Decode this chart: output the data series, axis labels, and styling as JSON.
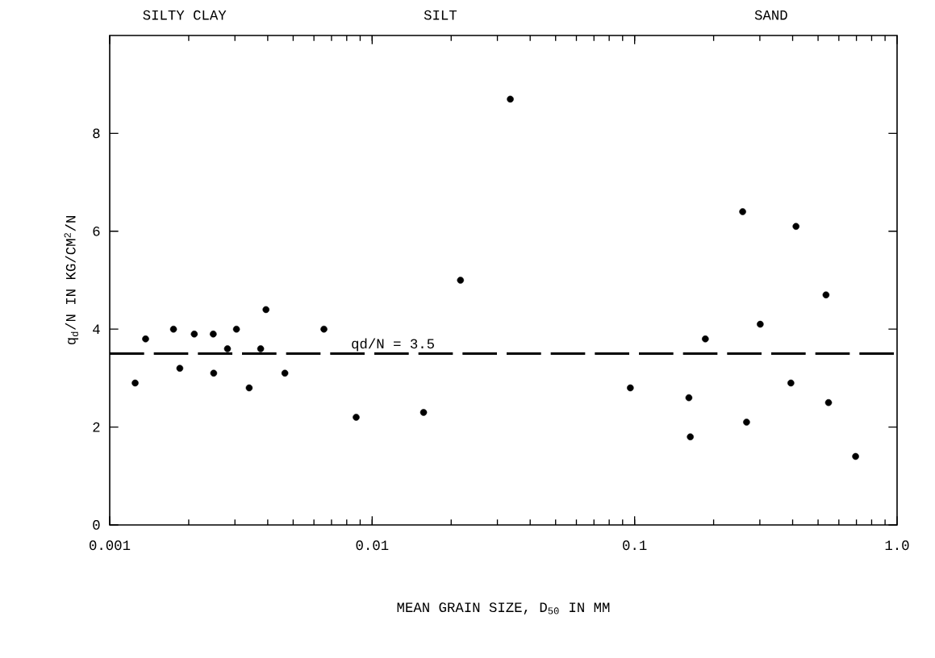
{
  "chart_data": {
    "type": "scatter",
    "xlabel": "MEAN GRAIN SIZE, D$_{50}$ IN MM",
    "ylabel": "q$_{d}$/N IN KG/CM$^{2}$/N",
    "annotations": [
      "SILTY CLAY",
      "SILT",
      "SAND"
    ],
    "log": "x",
    "xlim": [
      0.001,
      1.0
    ],
    "ylim": [
      0,
      10
    ],
    "xticks": [
      0.001,
      0.01,
      0.1,
      {
        "value": 1,
        "label": "1.0"
      }
    ],
    "yticks": [
      0,
      2,
      4,
      6,
      8
    ],
    "marker": "circle",
    "series": [
      {
        "color": "#000000",
        "x": [
          0.00125,
          0.00137,
          0.00175,
          0.00185,
          0.0021,
          0.00248,
          0.00249,
          0.00281,
          0.00304,
          0.0034,
          0.00394,
          0.00376,
          0.00465,
          0.00655,
          0.00869,
          0.0336,
          0.0217,
          0.0157,
          0.0963,
          0.161,
          0.163,
          0.186,
          0.258,
          0.267,
          0.301,
          0.412,
          0.394,
          0.536,
          0.548,
          0.695
        ],
        "values": [
          2.9,
          3.8,
          4.0,
          3.2,
          3.9,
          3.9,
          3.1,
          3.6,
          4.0,
          2.8,
          4.4,
          3.6,
          3.1,
          4.0,
          2.2,
          8.7,
          5.0,
          2.3,
          2.8,
          2.6,
          1.8,
          3.8,
          6.4,
          2.1,
          4.1,
          6.1,
          2.9,
          4.7,
          2.5,
          1.4
        ]
      }
    ],
    "ref_lines": [
      {
        "axis": "y",
        "value": 3.5,
        "label": "qd/N = 3.5",
        "color": "#000000",
        "line_style": "dashed"
      }
    ]
  }
}
